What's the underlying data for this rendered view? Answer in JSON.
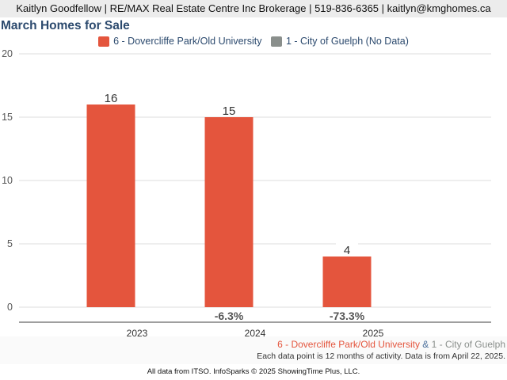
{
  "header": {
    "contact": "Kaitlyn Goodfellow | RE/MAX Real Estate Centre Inc Brokerage | 519-836-6365 | kaitlyn@kmghomes.ca"
  },
  "colors": {
    "series_primary": "#e4553d",
    "series_secondary": "#8a8f8c",
    "title": "#2c4a6e",
    "secondary_text": "#4a6f9b"
  },
  "chart_data": {
    "type": "bar",
    "title": "March Homes for Sale",
    "xlabel": "",
    "ylabel": "",
    "categories": [
      "2023",
      "2024",
      "2025"
    ],
    "series": [
      {
        "name": "6 - Dovercliffe Park/Old University",
        "values": [
          16,
          15,
          4
        ]
      },
      {
        "name": "1 - City of Guelph (No Data)",
        "values": [
          null,
          null,
          null
        ]
      }
    ],
    "pct_changes": [
      "",
      "-6.3%",
      "-73.3%"
    ],
    "ylim": [
      0,
      20
    ],
    "yticks": [
      0,
      5,
      10,
      15,
      20
    ],
    "grid": true,
    "legend_position": "top"
  },
  "footer": {
    "area_primary": "6 - Dovercliffe Park/Old University",
    "connector": " & ",
    "area_secondary": "1 - City of Guelph",
    "note": "Each data point is 12 months of activity. Data is from April 22, 2025.",
    "source": "All data from ITSO. InfoSparks © 2025 ShowingTime Plus, LLC."
  }
}
